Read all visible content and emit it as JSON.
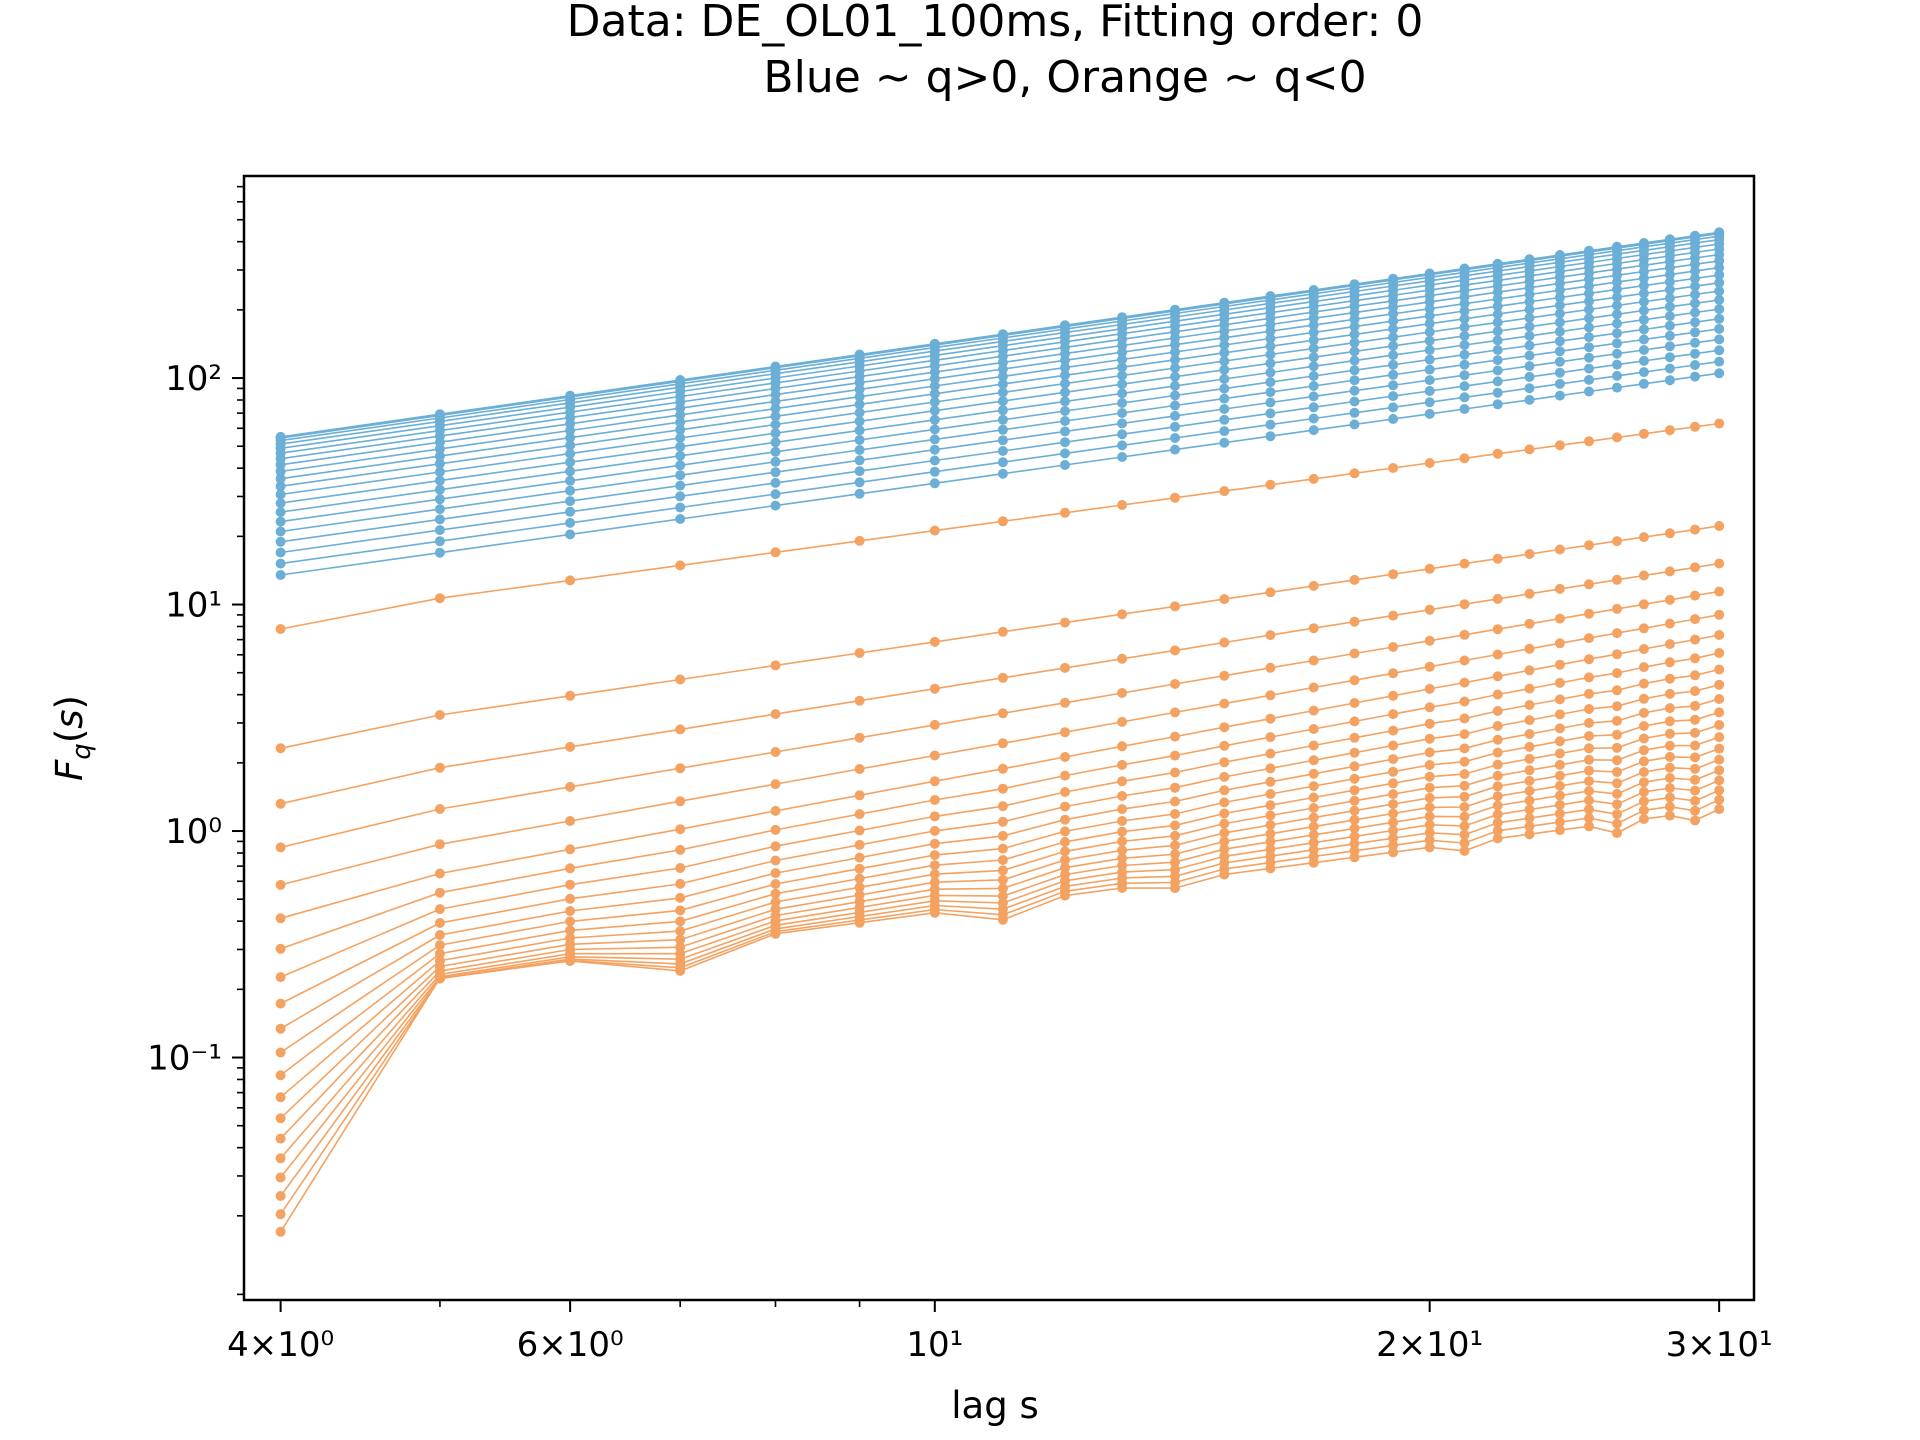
{
  "chart_data": {
    "type": "line",
    "title": "Data: DE_OL01_100ms, Fitting order: 0",
    "subtitle": "Blue ~ q>0, Orange ~ q<0",
    "xlabel": "lag s",
    "ylabel": "F_q(s)",
    "x_scale": "log",
    "y_scale": "log",
    "xlim": [
      3.8,
      31.5
    ],
    "ylim": [
      0.0085,
      780
    ],
    "x_ticks": [
      {
        "value": 4,
        "label": "4×10⁰"
      },
      {
        "value": 6,
        "label": "6×10⁰"
      },
      {
        "value": 10,
        "label": "10¹"
      },
      {
        "value": 20,
        "label": "2×10¹"
      },
      {
        "value": 30,
        "label": "3×10¹"
      }
    ],
    "y_ticks": [
      {
        "value": 0.1,
        "label": "10⁻¹"
      },
      {
        "value": 1,
        "label": "10⁰"
      },
      {
        "value": 10,
        "label": "10¹"
      },
      {
        "value": 100,
        "label": "10²"
      }
    ],
    "x": [
      4,
      5,
      6,
      7,
      8,
      9,
      10,
      11,
      12,
      13,
      14,
      15,
      16,
      17,
      18,
      19,
      20,
      21,
      22,
      23,
      24,
      25,
      26,
      27,
      28,
      29,
      30
    ],
    "colors": {
      "positive_q": "#6baed6",
      "negative_q": "#f4a261"
    },
    "series_positive_q": {
      "count": 20,
      "start_at_4": [
        55,
        13.5
      ],
      "end_at_30": [
        440,
        105
      ]
    },
    "series_negative_q": {
      "count": 20,
      "start_at_4": [
        7.8,
        0.017
      ],
      "end_at_30": [
        63,
        1.25
      ],
      "kink_dip_ratios_at": {
        "7": 0.78,
        "11": 0.85,
        "14": 0.93,
        "21": 0.92,
        "26": 0.9,
        "29": 0.92
      }
    },
    "grid": false,
    "legend": "none"
  }
}
